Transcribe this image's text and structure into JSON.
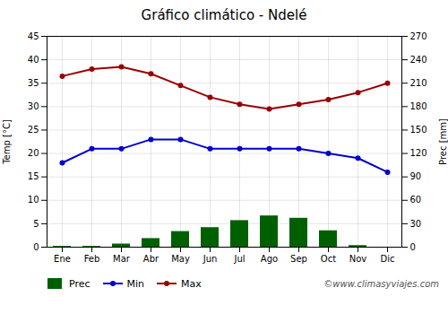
{
  "chart_data": {
    "type": "combo",
    "title": "Gráfico climático - Ndelé",
    "categories": [
      "Ene",
      "Feb",
      "Mar",
      "Abr",
      "May",
      "Jun",
      "Jul",
      "Ago",
      "Sep",
      "Oct",
      "Nov",
      "Dic"
    ],
    "series": [
      {
        "name": "Prec",
        "type": "bar",
        "axis": "y2",
        "color": "#006000",
        "values": [
          1,
          1,
          4,
          11,
          20,
          25,
          34,
          40,
          37,
          21,
          2,
          0
        ]
      },
      {
        "name": "Min",
        "type": "line",
        "color": "#0000cc",
        "marker": "circle",
        "line_style": "solid",
        "values": [
          18,
          21,
          21,
          23,
          23,
          21,
          21,
          21,
          21,
          20,
          19,
          16
        ]
      },
      {
        "name": "Max",
        "type": "line",
        "color": "#990000",
        "marker": "circle",
        "line_style": "solid",
        "values": [
          36.5,
          38,
          38.5,
          37,
          34.5,
          32,
          30.5,
          29.5,
          30.5,
          31.5,
          33,
          35
        ]
      }
    ],
    "ylabel": "Temp [°C]",
    "y2label": "Prec [mm]",
    "ylim": [
      0,
      45
    ],
    "yticks": [
      0,
      5,
      10,
      15,
      20,
      25,
      30,
      35,
      40,
      45
    ],
    "y2lim": [
      0,
      270
    ],
    "y2ticks": [
      0,
      30,
      60,
      90,
      120,
      150,
      180,
      210,
      240,
      270
    ],
    "grid": true,
    "legend": "lower left",
    "annotations": [
      "©www.climasyviajes.com"
    ]
  }
}
